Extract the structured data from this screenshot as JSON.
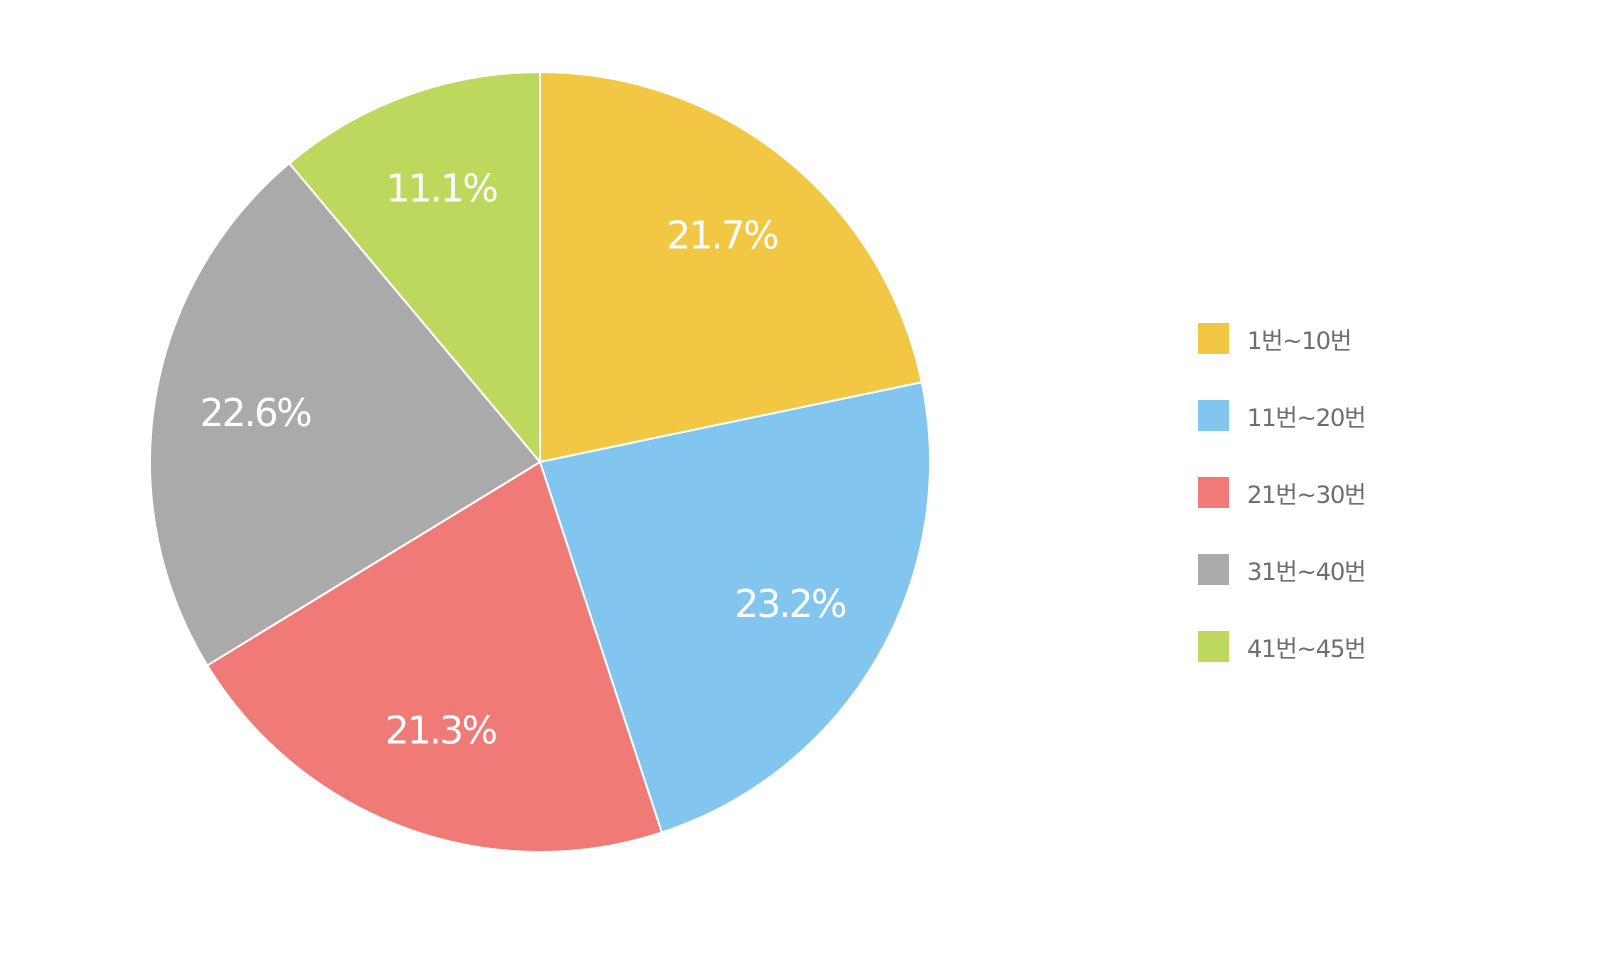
{
  "chart_data": {
    "type": "pie",
    "title": "",
    "categories": [
      "1번~10번",
      "11번~20번",
      "21번~30번",
      "31번~40번",
      "41번~45번"
    ],
    "values": [
      21.7,
      23.2,
      21.3,
      22.6,
      11.1
    ],
    "value_labels": [
      "21.7%",
      "23.2%",
      "21.3%",
      "22.6%",
      "11.1%"
    ],
    "colors": [
      "#F2C744",
      "#82C5EE",
      "#EF7A76",
      "#AAAAAA",
      "#BCD95E"
    ],
    "start": "12 o'clock",
    "direction": "clockwise",
    "legend_placement": "right"
  },
  "legend": {
    "items": [
      {
        "label": "1번~10번",
        "color": "#F2C744"
      },
      {
        "label": "11번~20번",
        "color": "#82C5EE"
      },
      {
        "label": "21번~30번",
        "color": "#EF7A76"
      },
      {
        "label": "31번~40번",
        "color": "#AAAAAA"
      },
      {
        "label": "41번~45번",
        "color": "#BCD95E"
      }
    ]
  }
}
